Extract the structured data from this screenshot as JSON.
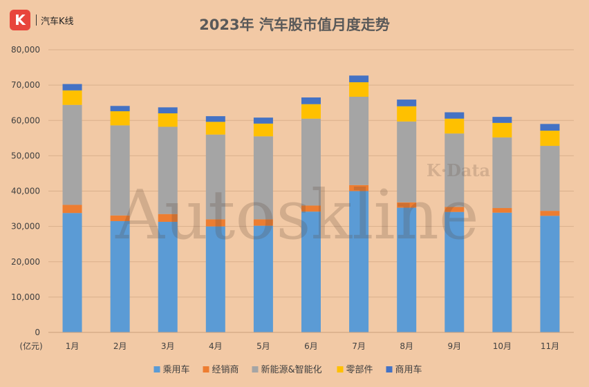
{
  "brand": {
    "logo_letter": "K",
    "name": "汽车K线"
  },
  "watermark": {
    "text": "Autoskline",
    "subtext": "K·Data"
  },
  "chart_data": {
    "type": "bar",
    "stacked": true,
    "title": "2023年 汽车股市值月度走势",
    "ylabel": "(亿元)",
    "ylim": [
      0,
      80000
    ],
    "yticks": [
      "0",
      "10,000",
      "20,000",
      "30,000",
      "40,000",
      "50,000",
      "60,000",
      "70,000",
      "80,000"
    ],
    "grid": true,
    "legend_position": "bottom",
    "categories": [
      "1月",
      "2月",
      "3月",
      "4月",
      "5月",
      "6月",
      "7月",
      "8月",
      "9月",
      "10月",
      "11月"
    ],
    "series": [
      {
        "name": "乘用车",
        "color": "#5b9bd5",
        "values": [
          33800,
          31500,
          31300,
          30000,
          30200,
          34200,
          40000,
          35300,
          34100,
          33900,
          33000
        ]
      },
      {
        "name": "经销商",
        "color": "#ed7d31",
        "values": [
          2300,
          1600,
          2200,
          2000,
          1800,
          1700,
          1700,
          1500,
          1400,
          1300,
          1400
        ]
      },
      {
        "name": "新能源&智能化",
        "color": "#a5a5a5",
        "values": [
          28300,
          25500,
          24700,
          24000,
          23500,
          24600,
          25000,
          22900,
          20800,
          20000,
          18400
        ]
      },
      {
        "name": "零部件",
        "color": "#ffc000",
        "values": [
          4100,
          4000,
          3800,
          3600,
          3600,
          4100,
          4100,
          4300,
          4200,
          4100,
          4300
        ]
      },
      {
        "name": "商用车",
        "color": "#4472c4",
        "values": [
          1800,
          1500,
          1700,
          1600,
          1700,
          1900,
          1900,
          1900,
          1800,
          1700,
          1900
        ]
      }
    ]
  }
}
